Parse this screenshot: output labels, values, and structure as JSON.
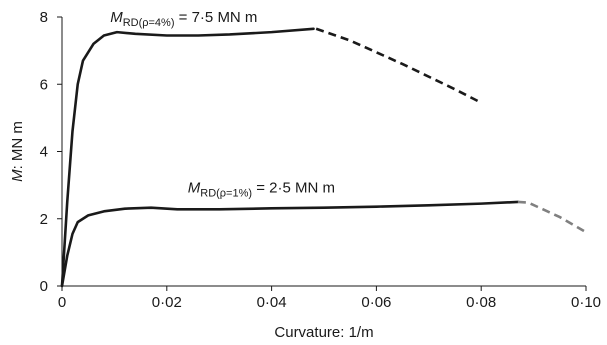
{
  "chart_data": {
    "type": "line",
    "xlabel": "Curvature: 1/m",
    "ylabel_italic": "M",
    "ylabel_rest": ": MN m",
    "xlim": [
      0,
      0.1
    ],
    "ylim": [
      0,
      8
    ],
    "grid": false,
    "legend": "none",
    "x_ticks": [
      {
        "value": 0,
        "label": "0"
      },
      {
        "value": 0.02,
        "label": "0·02"
      },
      {
        "value": 0.04,
        "label": "0·04"
      },
      {
        "value": 0.06,
        "label": "0·06"
      },
      {
        "value": 0.08,
        "label": "0·08"
      },
      {
        "value": 0.1,
        "label": "0·10"
      }
    ],
    "y_ticks": [
      {
        "value": 0,
        "label": "0"
      },
      {
        "value": 2,
        "label": "2"
      },
      {
        "value": 4,
        "label": "4"
      },
      {
        "value": 6,
        "label": "6"
      },
      {
        "value": 8,
        "label": "8"
      }
    ],
    "series": [
      {
        "id": "rho4",
        "color": "#1a1a1a",
        "dashed_color": "#1a1a1a",
        "solid": [
          [
            0,
            0
          ],
          [
            0.001,
            2.5
          ],
          [
            0.002,
            4.6
          ],
          [
            0.003,
            6.0
          ],
          [
            0.004,
            6.7
          ],
          [
            0.006,
            7.2
          ],
          [
            0.008,
            7.45
          ],
          [
            0.0105,
            7.55
          ],
          [
            0.014,
            7.5
          ],
          [
            0.02,
            7.45
          ],
          [
            0.026,
            7.45
          ],
          [
            0.032,
            7.48
          ],
          [
            0.04,
            7.55
          ],
          [
            0.048,
            7.65
          ]
        ],
        "dashed": [
          [
            0.0485,
            7.65
          ],
          [
            0.055,
            7.3
          ],
          [
            0.065,
            6.6
          ],
          [
            0.075,
            5.85
          ],
          [
            0.08,
            5.45
          ]
        ]
      },
      {
        "id": "rho1",
        "color": "#1a1a1a",
        "dashed_color": "#808080",
        "solid": [
          [
            0,
            0
          ],
          [
            0.001,
            0.9
          ],
          [
            0.002,
            1.55
          ],
          [
            0.003,
            1.9
          ],
          [
            0.005,
            2.1
          ],
          [
            0.008,
            2.22
          ],
          [
            0.012,
            2.3
          ],
          [
            0.017,
            2.33
          ],
          [
            0.022,
            2.28
          ],
          [
            0.03,
            2.28
          ],
          [
            0.04,
            2.31
          ],
          [
            0.05,
            2.33
          ],
          [
            0.06,
            2.36
          ],
          [
            0.07,
            2.4
          ],
          [
            0.08,
            2.45
          ],
          [
            0.087,
            2.5
          ]
        ],
        "dashed": [
          [
            0.087,
            2.5
          ],
          [
            0.089,
            2.48
          ],
          [
            0.095,
            2.05
          ],
          [
            0.1,
            1.6
          ]
        ]
      }
    ],
    "annotations": [
      {
        "id": "rho4",
        "main": "M",
        "sub": "RD(ρ=4%)",
        "rest": " = 7·5 MN m",
        "x": 0.0092,
        "y": 7.85
      },
      {
        "id": "rho1",
        "main": "M",
        "sub": "RD(ρ=1%)",
        "rest": " = 2·5 MN m",
        "x": 0.024,
        "y": 2.78
      }
    ]
  }
}
